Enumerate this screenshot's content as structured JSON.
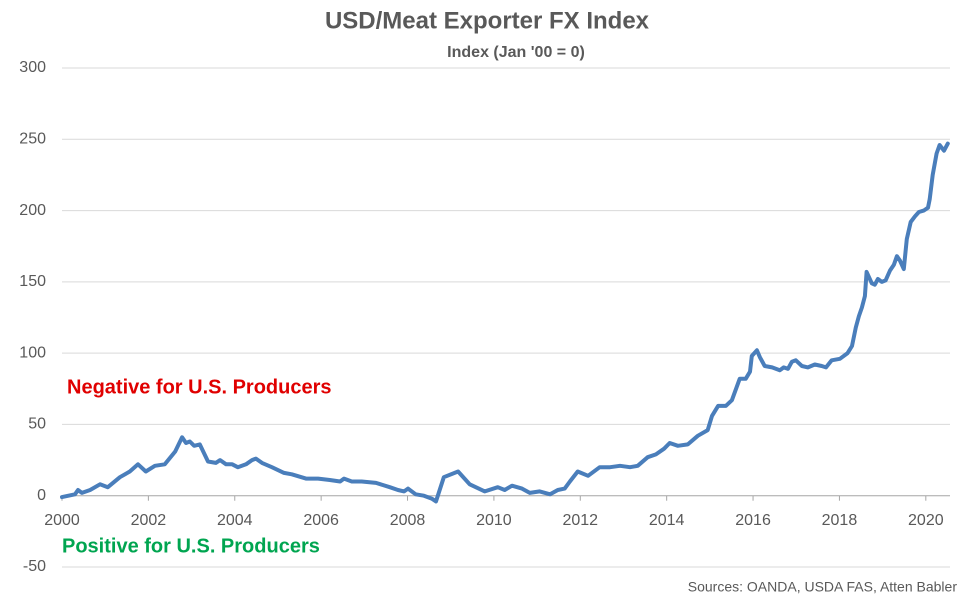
{
  "chart_data": {
    "type": "line",
    "title": "USD/Meat Exporter FX Index",
    "subtitle": "Index (Jan '00 = 0)",
    "annotations": [
      "Negative for U.S. Producers",
      "Positive for U.S. Producers"
    ],
    "annotation_colors": [
      "#e00000",
      "#00a550"
    ],
    "source": "Sources: OANDA, USDA FAS, Atten Babler",
    "color": "#4a7ebb",
    "x": [
      2000.0,
      2000.3,
      2000.37,
      2000.46,
      2000.65,
      2000.88,
      2001.06,
      2001.34,
      2001.57,
      2001.76,
      2001.94,
      2002.15,
      2002.38,
      2002.62,
      2002.78,
      2002.87,
      2002.96,
      2003.06,
      2003.19,
      2003.38,
      2003.56,
      2003.66,
      2003.8,
      2003.94,
      2004.07,
      2004.26,
      2004.4,
      2004.49,
      2004.63,
      2004.86,
      2005.14,
      2005.32,
      2005.65,
      2005.93,
      2006.2,
      2006.44,
      2006.53,
      2006.71,
      2006.94,
      2007.27,
      2007.59,
      2007.78,
      2007.92,
      2008.01,
      2008.19,
      2008.38,
      2008.56,
      2008.66,
      2008.84,
      2009.17,
      2009.44,
      2009.79,
      2010.09,
      2010.25,
      2010.42,
      2010.65,
      2010.83,
      2011.06,
      2011.3,
      2011.48,
      2011.64,
      2011.76,
      2011.94,
      2012.18,
      2012.45,
      2012.69,
      2012.92,
      2013.15,
      2013.33,
      2013.56,
      2013.75,
      2013.94,
      2014.07,
      2014.26,
      2014.49,
      2014.72,
      2014.95,
      2015.05,
      2015.19,
      2015.37,
      2015.51,
      2015.69,
      2015.83,
      2015.93,
      2015.97,
      2016.09,
      2016.16,
      2016.27,
      2016.44,
      2016.62,
      2016.71,
      2016.81,
      2016.9,
      2016.99,
      2017.13,
      2017.27,
      2017.43,
      2017.59,
      2017.69,
      2017.82,
      2018.01,
      2018.19,
      2018.29,
      2018.38,
      2018.45,
      2018.52,
      2018.59,
      2018.63,
      2018.75,
      2018.82,
      2018.89,
      2018.98,
      2019.07,
      2019.17,
      2019.26,
      2019.33,
      2019.4,
      2019.49,
      2019.56,
      2019.65,
      2019.75,
      2019.84,
      2019.95,
      2020.05,
      2020.09,
      2020.16,
      2020.25,
      2020.32,
      2020.42,
      2020.51
    ],
    "values": [
      -1,
      1,
      4,
      2,
      4,
      8,
      6,
      13,
      17,
      22,
      17,
      21,
      22,
      31,
      41,
      37,
      38,
      35,
      36,
      24,
      23,
      25,
      22,
      22,
      20,
      22,
      25,
      26,
      23,
      20,
      16,
      15,
      12,
      12,
      11,
      10,
      12,
      10,
      10,
      9,
      6,
      4,
      3,
      5,
      1,
      0,
      -2,
      -4,
      13,
      17,
      8,
      3,
      6,
      4,
      7,
      5,
      2,
      3,
      1,
      4,
      5,
      10,
      17,
      14,
      20,
      20,
      21,
      20,
      21,
      27,
      29,
      33,
      37,
      35,
      36,
      42,
      46,
      56,
      63,
      63,
      67,
      82,
      82,
      87,
      98,
      102,
      97,
      91,
      90,
      88,
      90,
      89,
      94,
      95,
      91,
      90,
      92,
      91,
      90,
      95,
      96,
      100,
      105,
      118,
      126,
      132,
      140,
      157,
      149,
      148,
      152,
      150,
      151,
      158,
      162,
      168,
      165,
      159,
      180,
      192,
      196,
      199,
      200,
      202,
      208,
      225,
      240,
      246,
      242,
      247
    ],
    "xlim": [
      2000,
      2020.56
    ],
    "xticks": [
      2000,
      2002,
      2004,
      2006,
      2008,
      2010,
      2012,
      2014,
      2016,
      2018,
      2020
    ],
    "ylim": [
      -50,
      300
    ],
    "yticks": [
      -50,
      0,
      50,
      100,
      150,
      200,
      250,
      300
    ],
    "grid": true
  }
}
